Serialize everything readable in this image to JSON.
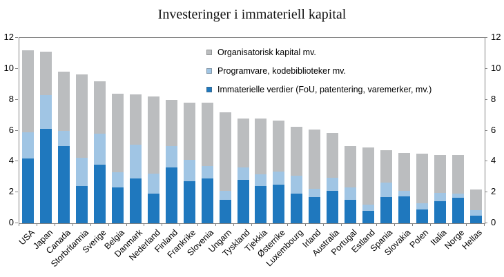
{
  "title": "Investeringer i immateriell kapital",
  "y_axis": {
    "ticks_left": [
      "0",
      "2",
      "4",
      "6",
      "8",
      "10",
      "12"
    ],
    "ticks_right": [
      "0",
      "2",
      "4",
      "6",
      "8",
      "10",
      "12"
    ]
  },
  "chart_data": {
    "type": "bar",
    "stacked": true,
    "title": "Investeringer i immateriell kapital",
    "xlabel": "",
    "ylabel": "",
    "ylim": [
      0,
      12
    ],
    "yticks": [
      0,
      2,
      4,
      6,
      8,
      10,
      12
    ],
    "grid": false,
    "legend_position": "inside-top-center",
    "categories": [
      "USA",
      "Japan",
      "Canada",
      "Storbritannia",
      "Sverige",
      "Belgia",
      "Danmark",
      "Nederland",
      "Finland",
      "Frankrike",
      "Slovenia",
      "Ungarn",
      "Tyskland",
      "Tjekkia",
      "Østerrike",
      "Luxembourg",
      "Irland",
      "Australia",
      "Portugal",
      "Estland",
      "Spania",
      "Slovakia",
      "Polen",
      "Italia",
      "Norge",
      "Hellas"
    ],
    "series": [
      {
        "name": "Immaterielle verdier (FoU, patentering, varemerker, mv.)",
        "color": "#1F78BE",
        "values": [
          4.2,
          6.1,
          5.0,
          2.4,
          3.8,
          2.3,
          2.9,
          1.9,
          3.6,
          2.7,
          2.9,
          1.5,
          2.8,
          2.4,
          2.5,
          1.9,
          1.7,
          2.1,
          1.5,
          0.8,
          1.7,
          1.75,
          0.9,
          1.45,
          1.65,
          0.5
        ]
      },
      {
        "name": "Programvare, kodebiblioteker mv.",
        "color": "#A0C5E4",
        "values": [
          1.7,
          2.2,
          1.0,
          1.85,
          2.0,
          1.0,
          2.2,
          1.3,
          1.4,
          1.4,
          0.8,
          0.6,
          0.8,
          0.75,
          0.85,
          1.2,
          0.55,
          0.85,
          0.8,
          0.4,
          0.95,
          0.35,
          0.4,
          0.5,
          0.25,
          0.35
        ]
      },
      {
        "name": "Organisatorisk kapital mv.",
        "color": "#BBBDBF",
        "values": [
          5.3,
          2.8,
          3.8,
          5.4,
          3.4,
          5.1,
          3.25,
          5.0,
          3.0,
          3.7,
          4.1,
          5.1,
          3.2,
          3.65,
          3.3,
          3.15,
          3.8,
          2.9,
          2.7,
          3.7,
          2.1,
          2.45,
          3.2,
          2.45,
          2.5,
          1.35
        ]
      }
    ],
    "totals": [
      11.2,
      11.1,
      9.8,
      9.65,
      9.2,
      8.4,
      8.35,
      8.2,
      8.0,
      7.8,
      7.8,
      7.2,
      6.8,
      6.8,
      6.65,
      6.25,
      6.05,
      5.85,
      5.0,
      4.9,
      4.75,
      4.55,
      4.5,
      4.4,
      4.4,
      2.2
    ]
  }
}
